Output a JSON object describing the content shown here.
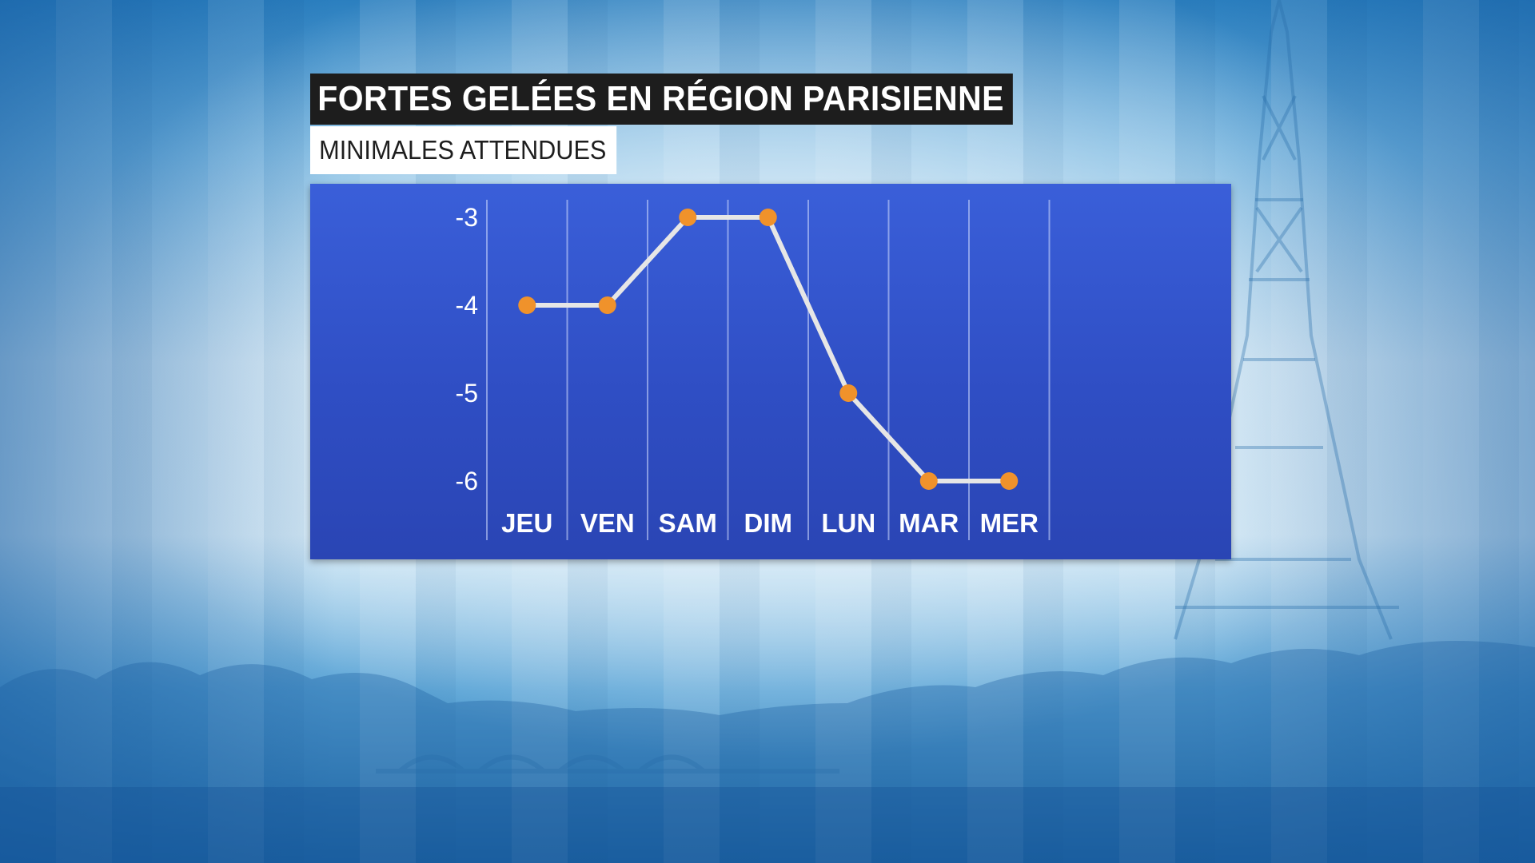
{
  "header": {
    "title": "FORTES GELÉES EN RÉGION PARISIENNE",
    "subtitle": "MINIMALES ATTENDUES"
  },
  "colors": {
    "panel": "#2f4ec4",
    "line": "#e6e6e6",
    "marker": "#f0922b",
    "title_bg": "#1d1d1d",
    "subtitle_bg": "#ffffff"
  },
  "chart_data": {
    "type": "line",
    "title": "FORTES GELÉES EN RÉGION PARISIENNE",
    "subtitle": "MINIMALES ATTENDUES",
    "categories": [
      "JEU",
      "VEN",
      "SAM",
      "DIM",
      "LUN",
      "MAR",
      "MER"
    ],
    "series": [
      {
        "values": [
          -4,
          -4,
          -3,
          -3,
          -5,
          -6,
          -6
        ]
      }
    ],
    "yticks": [
      "-3",
      "-4",
      "-5",
      "-6"
    ],
    "ylim": [
      -6,
      -3
    ],
    "grid": "vertical",
    "legend": "none"
  }
}
